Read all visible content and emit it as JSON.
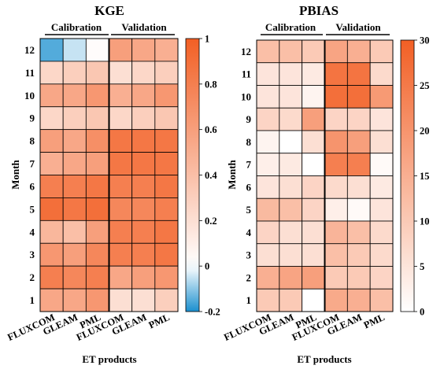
{
  "chart_data": [
    {
      "type": "heatmap",
      "title": "KGE",
      "group_labels": [
        "Calibration",
        "Validation"
      ],
      "x_categories": [
        "FLUXCOM",
        "GLEAM",
        "PML",
        "FLUXCOM",
        "GLEAM",
        "PML"
      ],
      "y_categories": [
        "12",
        "11",
        "10",
        "9",
        "8",
        "7",
        "6",
        "5",
        "4",
        "3",
        "2",
        "1"
      ],
      "xlabel": "ET products",
      "ylabel": "Month",
      "values": [
        [
          -0.15,
          -0.05,
          0.02,
          0.6,
          0.55,
          0.5
        ],
        [
          0.25,
          0.3,
          0.35,
          0.2,
          0.25,
          0.3
        ],
        [
          0.55,
          0.55,
          0.65,
          0.5,
          0.55,
          0.65
        ],
        [
          0.25,
          0.3,
          0.35,
          0.25,
          0.3,
          0.35
        ],
        [
          0.6,
          0.55,
          0.7,
          0.85,
          0.85,
          0.85
        ],
        [
          0.5,
          0.55,
          0.6,
          0.85,
          0.85,
          0.85
        ],
        [
          0.8,
          0.8,
          0.85,
          0.8,
          0.8,
          0.85
        ],
        [
          0.9,
          0.85,
          0.9,
          0.75,
          0.75,
          0.8
        ],
        [
          0.45,
          0.4,
          0.6,
          0.8,
          0.8,
          0.85
        ],
        [
          0.65,
          0.6,
          0.75,
          0.8,
          0.8,
          0.85
        ],
        [
          0.8,
          0.75,
          0.8,
          0.55,
          0.6,
          0.65
        ],
        [
          0.55,
          0.55,
          0.65,
          0.2,
          0.2,
          0.3
        ]
      ],
      "colorbar": {
        "min": -0.2,
        "max": 1,
        "ticks": [
          -0.2,
          0,
          0.2,
          0.4,
          0.6,
          0.8,
          1
        ]
      },
      "colors": {
        "negative": "#1a8fcf",
        "neutral": "#ffffff",
        "positive": "#f25f24"
      }
    },
    {
      "type": "heatmap",
      "title": "PBIAS",
      "group_labels": [
        "Calibration",
        "Validation"
      ],
      "x_categories": [
        "FLUXCOM",
        "GLEAM",
        "PML",
        "FLUXCOM",
        "GLEAM",
        "PML"
      ],
      "y_categories": [
        "12",
        "11",
        "10",
        "9",
        "8",
        "7",
        "6",
        "5",
        "4",
        "3",
        "2",
        "1"
      ],
      "xlabel": "ET products",
      "ylabel": "Month",
      "values": [
        [
          12,
          12,
          10,
          17,
          15,
          10
        ],
        [
          5,
          5,
          4,
          26,
          26,
          7
        ],
        [
          5,
          5,
          2,
          27,
          27,
          19
        ],
        [
          8,
          7,
          18,
          8,
          8,
          5
        ],
        [
          2,
          0,
          6,
          20,
          18,
          6
        ],
        [
          3,
          4,
          0,
          24,
          24,
          1
        ],
        [
          5,
          6,
          8,
          7,
          6,
          4
        ],
        [
          13,
          12,
          8,
          3,
          1,
          5
        ],
        [
          8,
          6,
          6,
          14,
          12,
          7
        ],
        [
          6,
          6,
          6,
          12,
          10,
          7
        ],
        [
          15,
          17,
          18,
          10,
          10,
          8
        ],
        [
          10,
          10,
          0,
          16,
          15,
          12
        ]
      ],
      "colorbar": {
        "min": 0,
        "max": 30,
        "ticks": [
          0,
          5,
          10,
          15,
          20,
          25,
          30
        ]
      },
      "colors": {
        "low": "#ffffff",
        "high": "#f25f24"
      }
    }
  ]
}
